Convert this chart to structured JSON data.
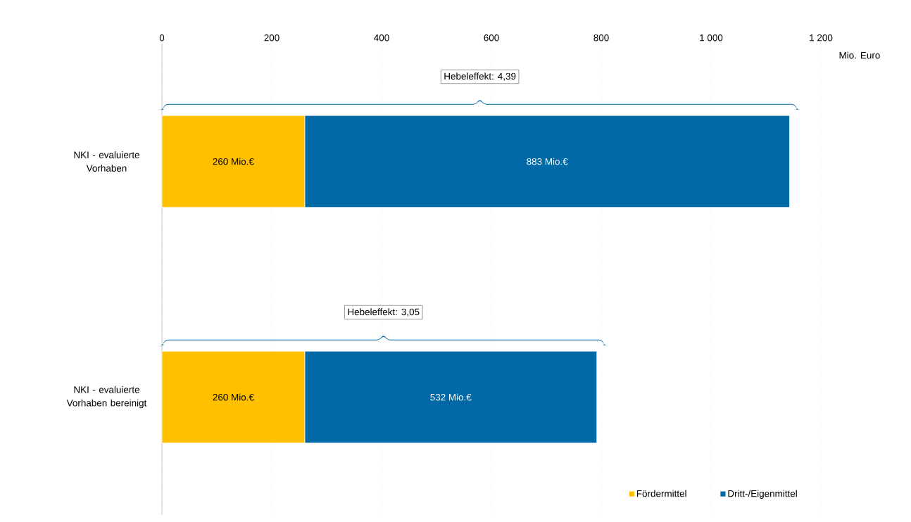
{
  "chart_data": {
    "type": "bar",
    "orientation": "horizontal",
    "stacked": true,
    "categories": [
      "NKI - evaluierte Vorhaben",
      "NKI - evaluierte Vorhaben bereinigt"
    ],
    "series": [
      {
        "name": "Fördermittel",
        "color": "#ffc000",
        "values": [
          260,
          260
        ],
        "value_labels": [
          "260 Mio.€",
          "260 Mio.€"
        ]
      },
      {
        "name": "Dritt-/Eigenmittel",
        "color": "#0069a6",
        "values": [
          883,
          532
        ],
        "value_labels": [
          "883 Mio.€",
          "532 Mio.€"
        ]
      }
    ],
    "xlabel": "Mio. Euro",
    "xlim": [
      0,
      1200
    ],
    "xticks": [
      0,
      200,
      400,
      600,
      800,
      {
        "value": 1000,
        "label": "1 000"
      },
      {
        "value": 1200,
        "label": "1 200"
      }
    ],
    "annotations": [
      "Hebeleffekt: 4,39",
      "Hebeleffekt: 3,05"
    ],
    "grid": "x",
    "legend": "bottom right"
  }
}
